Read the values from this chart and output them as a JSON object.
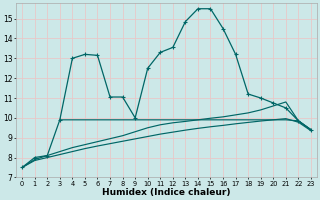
{
  "bg_color": "#cce8e8",
  "grid_color": "#e8c8c8",
  "line_color": "#006666",
  "xlabel": "Humidex (Indice chaleur)",
  "xlabel_fontsize": 6.5,
  "xlim": [
    -0.5,
    23.5
  ],
  "ylim": [
    7,
    15.8
  ],
  "yticks": [
    7,
    8,
    9,
    10,
    11,
    12,
    13,
    14,
    15
  ],
  "xticks": [
    0,
    1,
    2,
    3,
    4,
    5,
    6,
    7,
    8,
    9,
    10,
    11,
    12,
    13,
    14,
    15,
    16,
    17,
    18,
    19,
    20,
    21,
    22,
    23
  ],
  "curve_main_x": [
    0,
    1,
    2,
    3,
    4,
    5,
    6,
    7,
    8,
    9,
    10,
    11,
    12,
    13,
    14,
    15,
    16,
    17,
    18,
    19,
    20,
    21,
    22,
    23
  ],
  "curve_main_y": [
    7.5,
    8.0,
    8.1,
    9.9,
    13.0,
    13.2,
    13.15,
    11.05,
    11.05,
    10.0,
    12.5,
    13.3,
    13.55,
    14.85,
    15.5,
    15.5,
    14.5,
    13.2,
    11.2,
    11.0,
    10.75,
    10.5,
    9.85,
    9.4
  ],
  "curve_flat_x": [
    3,
    4,
    5,
    6,
    7,
    8,
    9,
    10,
    11,
    12,
    13,
    14,
    15,
    16,
    17,
    18,
    19,
    20,
    21,
    22,
    23
  ],
  "curve_flat_y": [
    9.9,
    9.9,
    9.9,
    9.9,
    9.9,
    9.9,
    9.9,
    9.9,
    9.9,
    9.9,
    9.9,
    9.9,
    9.9,
    9.9,
    9.9,
    9.9,
    9.9,
    9.9,
    9.9,
    9.85,
    9.4
  ],
  "curve_upper_x": [
    0,
    1,
    2,
    3,
    4,
    5,
    6,
    7,
    8,
    9,
    10,
    11,
    12,
    13,
    14,
    15,
    16,
    17,
    18,
    19,
    20,
    21,
    22,
    23
  ],
  "curve_upper_y": [
    7.5,
    7.9,
    8.1,
    8.3,
    8.5,
    8.65,
    8.8,
    8.95,
    9.1,
    9.3,
    9.5,
    9.65,
    9.75,
    9.82,
    9.9,
    9.98,
    10.05,
    10.15,
    10.25,
    10.4,
    10.6,
    10.8,
    9.85,
    9.4
  ],
  "curve_lower_x": [
    0,
    1,
    2,
    3,
    4,
    5,
    6,
    7,
    8,
    9,
    10,
    11,
    12,
    13,
    14,
    15,
    16,
    17,
    18,
    19,
    20,
    21,
    22,
    23
  ],
  "curve_lower_y": [
    7.5,
    7.85,
    8.0,
    8.15,
    8.3,
    8.45,
    8.58,
    8.7,
    8.82,
    8.94,
    9.06,
    9.18,
    9.28,
    9.38,
    9.47,
    9.55,
    9.62,
    9.7,
    9.77,
    9.84,
    9.9,
    9.96,
    9.78,
    9.35
  ]
}
